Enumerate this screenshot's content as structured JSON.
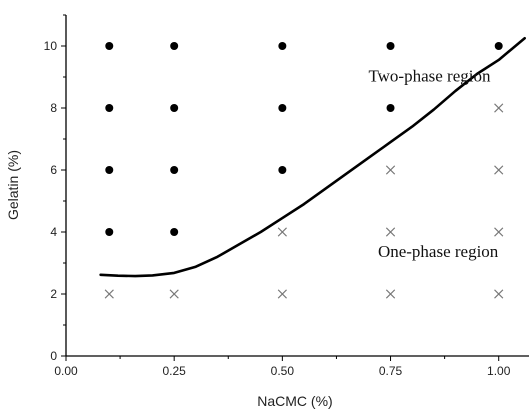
{
  "chart_data": {
    "type": "scatter",
    "title": "",
    "xlabel": "NaCMC (%)",
    "ylabel": "Gelatin (%)",
    "xlim": [
      0,
      1.07
    ],
    "ylim": [
      0,
      11
    ],
    "x_ticks": [
      0.0,
      0.25,
      0.5,
      0.75,
      1.0
    ],
    "x_tick_labels": [
      "0.00",
      "0.25",
      "0.50",
      "0.75",
      "1.00"
    ],
    "y_ticks": [
      0,
      2,
      4,
      6,
      8,
      10
    ],
    "y_tick_labels": [
      "0",
      "2",
      "4",
      "6",
      "8",
      "10"
    ],
    "grid": false,
    "series": [
      {
        "marker": "filled-circle",
        "color": "#000000",
        "points": [
          [
            0.1,
            10
          ],
          [
            0.25,
            10
          ],
          [
            0.5,
            10
          ],
          [
            0.75,
            10
          ],
          [
            1.0,
            10
          ],
          [
            0.1,
            8
          ],
          [
            0.25,
            8
          ],
          [
            0.5,
            8
          ],
          [
            0.75,
            8
          ],
          [
            0.1,
            6
          ],
          [
            0.25,
            6
          ],
          [
            0.5,
            6
          ],
          [
            0.1,
            4
          ],
          [
            0.25,
            4
          ]
        ]
      },
      {
        "marker": "cross",
        "color": "#777777",
        "points": [
          [
            1.0,
            8
          ],
          [
            0.75,
            6
          ],
          [
            1.0,
            6
          ],
          [
            0.5,
            4
          ],
          [
            0.75,
            4
          ],
          [
            1.0,
            4
          ],
          [
            0.1,
            2
          ],
          [
            0.25,
            2
          ],
          [
            0.5,
            2
          ],
          [
            0.75,
            2
          ],
          [
            1.0,
            2
          ]
        ]
      }
    ],
    "boundary_curve": {
      "color": "#000000",
      "points": [
        [
          0.08,
          2.62
        ],
        [
          0.12,
          2.59
        ],
        [
          0.16,
          2.58
        ],
        [
          0.2,
          2.6
        ],
        [
          0.25,
          2.68
        ],
        [
          0.3,
          2.88
        ],
        [
          0.35,
          3.2
        ],
        [
          0.4,
          3.6
        ],
        [
          0.45,
          4.0
        ],
        [
          0.5,
          4.45
        ],
        [
          0.55,
          4.9
        ],
        [
          0.6,
          5.4
        ],
        [
          0.65,
          5.9
        ],
        [
          0.7,
          6.4
        ],
        [
          0.75,
          6.9
        ],
        [
          0.8,
          7.4
        ],
        [
          0.85,
          7.95
        ],
        [
          0.9,
          8.55
        ],
        [
          0.95,
          9.1
        ],
        [
          1.0,
          9.55
        ],
        [
          1.03,
          9.9
        ],
        [
          1.06,
          10.25
        ]
      ]
    },
    "annotations": [
      {
        "text": "Two-phase region",
        "x": 0.84,
        "y": 8.85,
        "anchor": "middle"
      },
      {
        "text": "One-phase region",
        "x": 0.86,
        "y": 3.2,
        "anchor": "middle"
      }
    ]
  }
}
